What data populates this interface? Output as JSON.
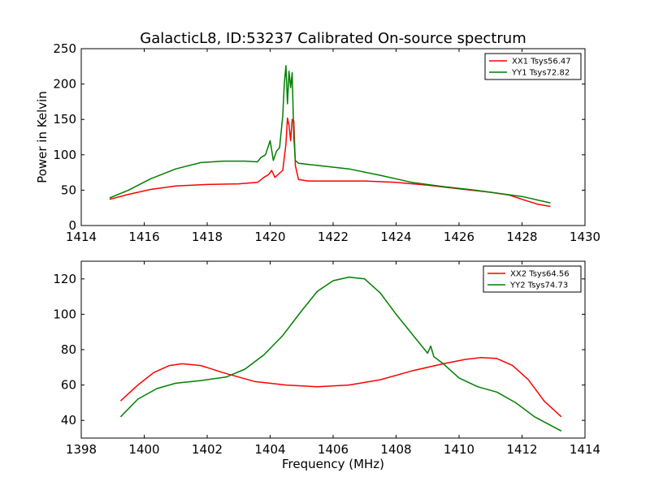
{
  "figure": {
    "title": "GalacticL8, ID:53237 Calibrated On-source spectrum",
    "ylabel": "Power in Kelvin",
    "xlabel": "Frequency (MHz)"
  },
  "colors": {
    "red": "#ff0000",
    "green": "#007f00"
  },
  "chart_data": [
    {
      "type": "line",
      "xlim": [
        1414,
        1430
      ],
      "ylim": [
        0,
        250
      ],
      "xticks": [
        1414,
        1416,
        1418,
        1420,
        1422,
        1424,
        1426,
        1428,
        1430
      ],
      "yticks": [
        0,
        50,
        100,
        150,
        200,
        250
      ],
      "legend_position": "top-right",
      "grid": false,
      "series": [
        {
          "name": "XX1 Tsys56.47",
          "color": "red",
          "x": [
            1414.9,
            1415.5,
            1416.2,
            1417,
            1418,
            1419,
            1419.6,
            1419.8,
            1419.95,
            1420.05,
            1420.15,
            1420.3,
            1420.4,
            1420.5,
            1420.55,
            1420.6,
            1420.65,
            1420.7,
            1420.75,
            1420.8,
            1420.9,
            1421.2,
            1422,
            1423,
            1424,
            1425,
            1426,
            1427,
            1427.6,
            1428,
            1428.5,
            1428.9
          ],
          "y": [
            37,
            44,
            51,
            56,
            58,
            59,
            61,
            68,
            72,
            78,
            68,
            74,
            78,
            115,
            152,
            142,
            120,
            150,
            148,
            85,
            65,
            63,
            63,
            63,
            61,
            57,
            52,
            47,
            43,
            37,
            30,
            27
          ]
        },
        {
          "name": "YY1 Tsys72.82",
          "color": "green",
          "x": [
            1414.9,
            1415.5,
            1416.2,
            1417,
            1417.8,
            1418.5,
            1419.2,
            1419.6,
            1419.7,
            1419.85,
            1420,
            1420.1,
            1420.2,
            1420.3,
            1420.4,
            1420.45,
            1420.5,
            1420.55,
            1420.6,
            1420.65,
            1420.7,
            1420.75,
            1420.8,
            1420.9,
            1421.5,
            1422.5,
            1423.5,
            1424.5,
            1425.5,
            1426.5,
            1427.5,
            1428,
            1428.9
          ],
          "y": [
            39,
            50,
            66,
            80,
            89,
            91,
            91,
            90,
            96,
            100,
            120,
            92,
            105,
            110,
            155,
            200,
            226,
            172,
            218,
            195,
            216,
            125,
            92,
            88,
            85,
            80,
            71,
            61,
            55,
            50,
            44,
            41,
            32
          ]
        }
      ]
    },
    {
      "type": "line",
      "xlim": [
        1398,
        1414
      ],
      "ylim": [
        30,
        130
      ],
      "xticks": [
        1398,
        1400,
        1402,
        1404,
        1406,
        1408,
        1410,
        1412,
        1414
      ],
      "yticks": [
        40,
        60,
        80,
        100,
        120
      ],
      "legend_position": "top-right",
      "grid": false,
      "series": [
        {
          "name": "XX2 Tsys64.56",
          "color": "red",
          "x": [
            1399.25,
            1399.8,
            1400.3,
            1400.8,
            1401.2,
            1401.8,
            1402.5,
            1403.5,
            1404.5,
            1405.5,
            1406.5,
            1407.5,
            1408.5,
            1409.5,
            1410.2,
            1410.7,
            1411.2,
            1411.7,
            1412.2,
            1412.7,
            1413.25
          ],
          "y": [
            51,
            60,
            67,
            71,
            72,
            71,
            67,
            62,
            60,
            59,
            60,
            63,
            68,
            72,
            74.5,
            75.5,
            75,
            71,
            63,
            51,
            42
          ]
        },
        {
          "name": "YY2 Tsys74.73",
          "color": "green",
          "x": [
            1399.25,
            1399.8,
            1400.4,
            1401,
            1401.8,
            1402.6,
            1403.2,
            1403.8,
            1404.4,
            1405,
            1405.5,
            1406,
            1406.5,
            1407,
            1407.5,
            1408,
            1408.5,
            1409,
            1409.1,
            1409.2,
            1409.5,
            1410,
            1410.6,
            1411.2,
            1411.8,
            1412.4,
            1413.25
          ],
          "y": [
            42,
            52,
            58,
            61,
            62.5,
            64.5,
            69,
            77,
            88,
            102,
            113,
            119,
            121,
            120,
            112,
            100,
            89,
            78,
            82,
            76,
            72,
            64,
            59,
            56,
            50,
            42,
            34
          ]
        }
      ]
    }
  ]
}
